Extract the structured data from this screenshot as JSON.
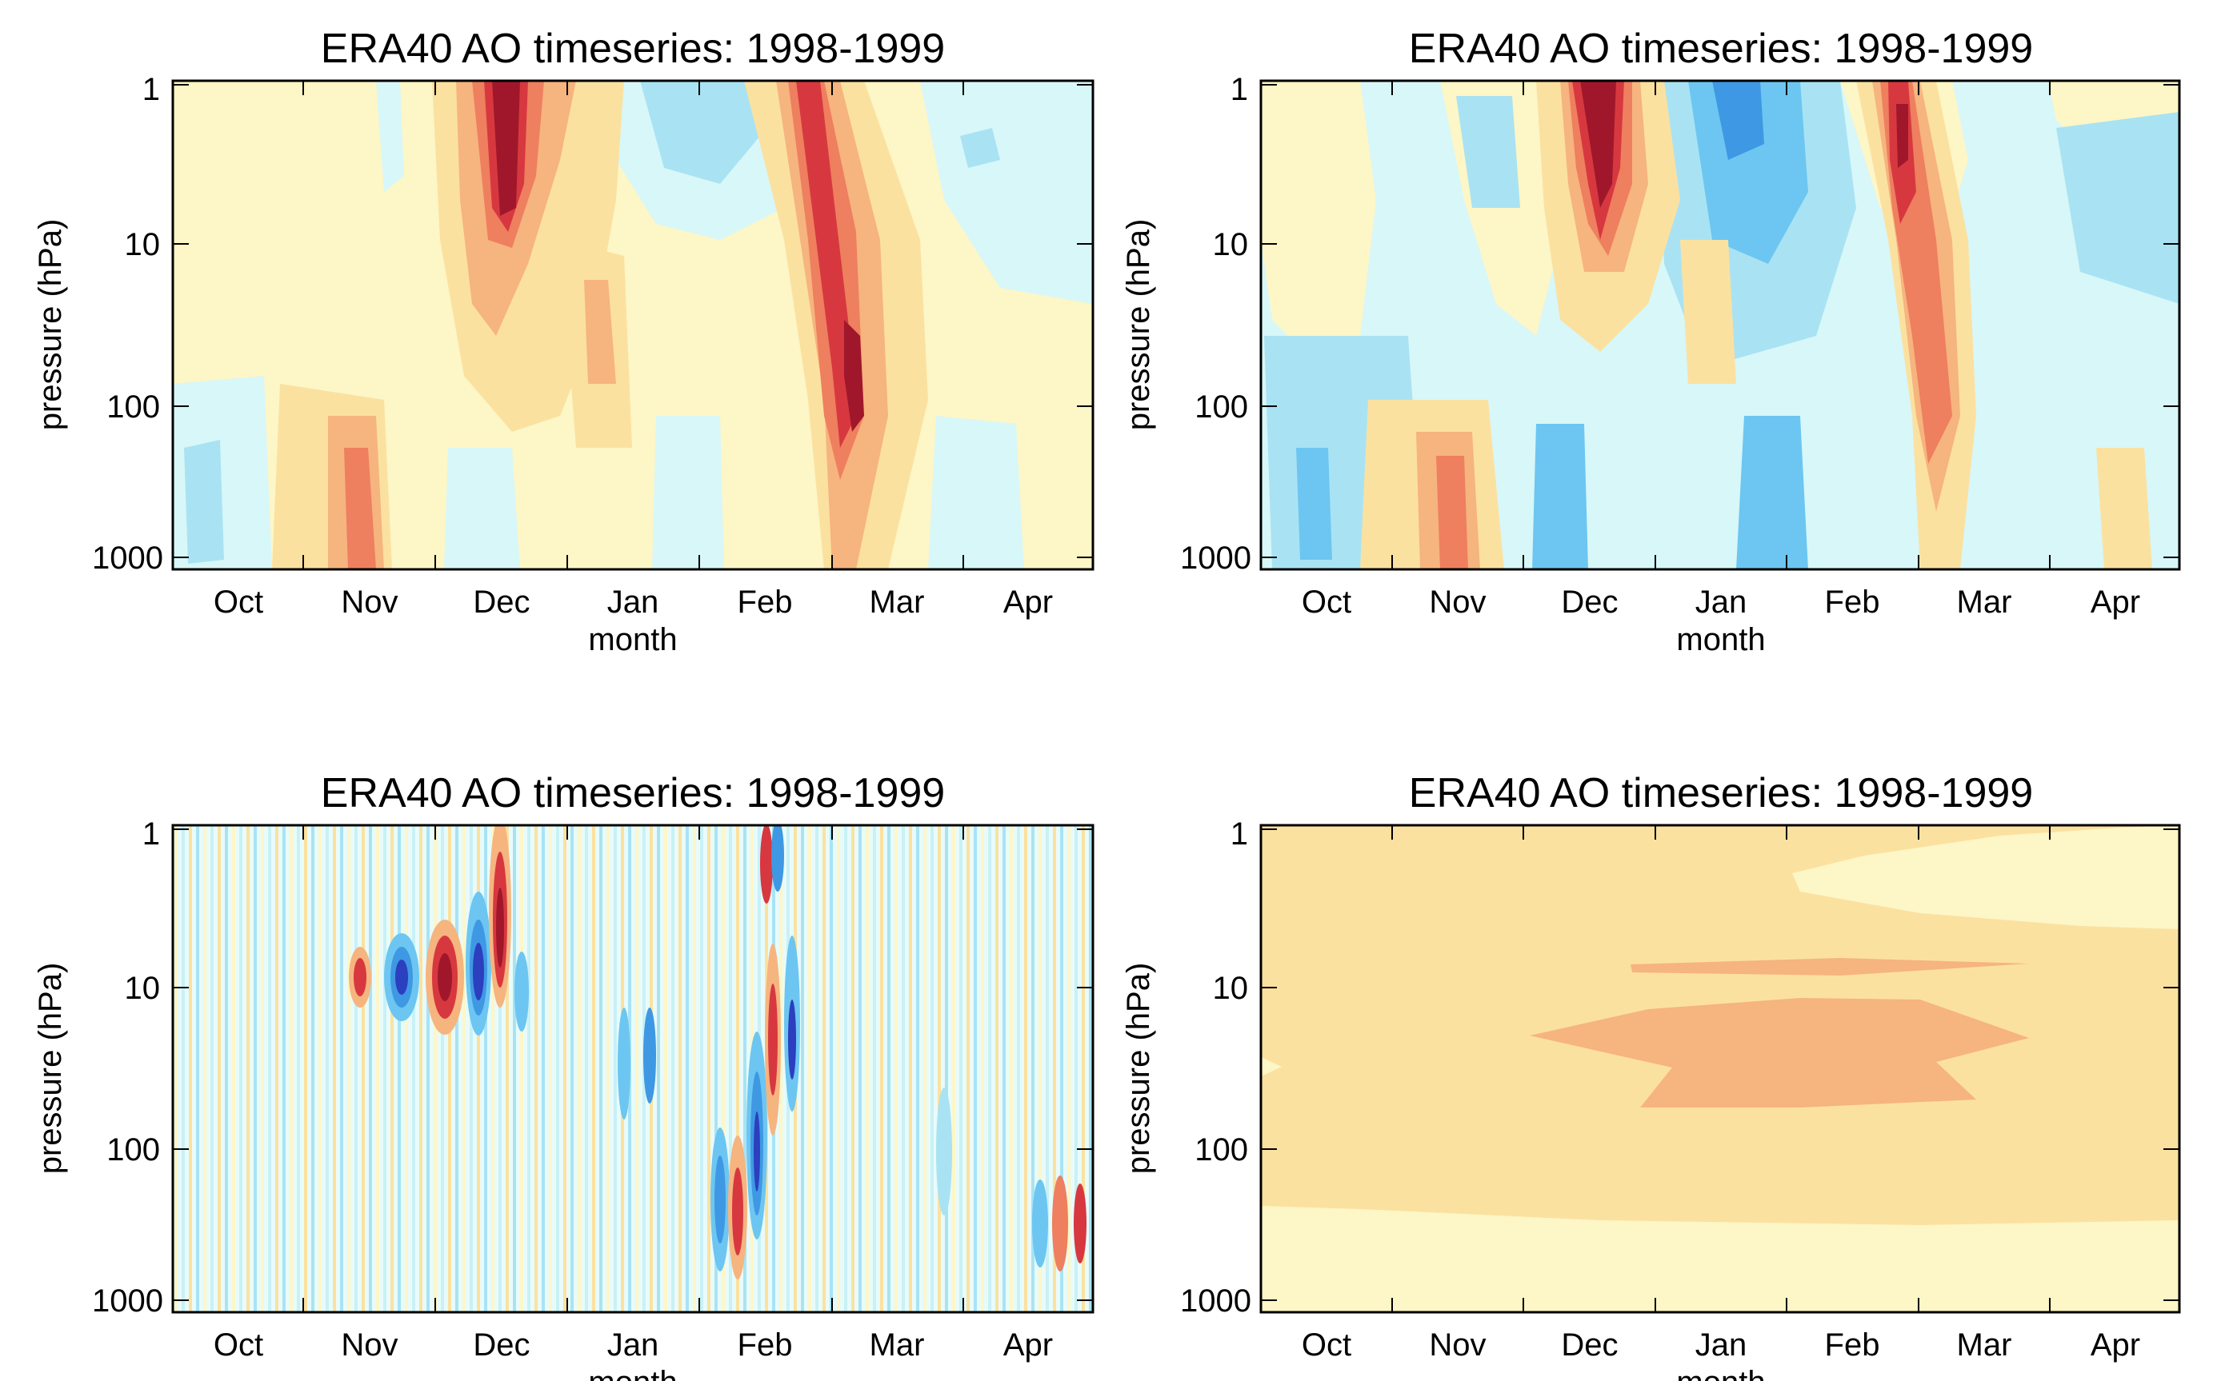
{
  "chart_data": [
    {
      "type": "heatmap",
      "title": "ERA40 AO timeseries: 1998-1999",
      "xlabel": "month",
      "ylabel": "pressure (hPa)",
      "xticks": [
        "Oct",
        "Nov",
        "Dec",
        "Jan",
        "Feb",
        "Mar",
        "Apr"
      ],
      "yticks": [
        "1",
        "10",
        "100",
        "1000"
      ],
      "ylim": [
        1000,
        1
      ],
      "yscale": "log",
      "palette": [
        "#2b3fbf",
        "#4a90e2",
        "#8fd0f0",
        "#c9f1f6",
        "#e8fbfb",
        "#fdf6c6",
        "#fbe1a0",
        "#f6b47f",
        "#ee7f5f",
        "#d7383f",
        "#a0172b"
      ],
      "features": [
        {
          "month": "Dec",
          "p_top": 1,
          "p_bottom": 20,
          "level": 5
        },
        {
          "month": "Feb",
          "p_top": 1,
          "p_bottom": 150,
          "level": 4
        },
        {
          "month": "Nov",
          "p_top": 200,
          "p_bottom": 1000,
          "level": 3
        },
        {
          "month": "Jan",
          "p_top": 1,
          "p_bottom": 8,
          "level": -2
        }
      ]
    },
    {
      "type": "heatmap",
      "title": "ERA40 AO timeseries: 1998-1999",
      "xlabel": "month",
      "ylabel": "pressure (hPa)",
      "xticks": [
        "Oct",
        "Nov",
        "Dec",
        "Jan",
        "Feb",
        "Mar",
        "Apr"
      ],
      "yticks": [
        "1",
        "10",
        "100",
        "1000"
      ],
      "ylim": [
        1000,
        1
      ],
      "yscale": "log",
      "features": [
        {
          "month": "Dec",
          "p_top": 1,
          "p_bottom": 30,
          "level": 5
        },
        {
          "month": "Feb",
          "p_top": 1,
          "p_bottom": 300,
          "level": 4
        },
        {
          "month": "Jan",
          "p_top": 1,
          "p_bottom": 20,
          "level": -3
        },
        {
          "month": "Nov",
          "p_top": 200,
          "p_bottom": 1000,
          "level": 3
        }
      ]
    },
    {
      "type": "heatmap",
      "title": "ERA40 AO timeseries: 1998-1999",
      "xlabel": "month",
      "ylabel": "pressure (hPa)",
      "xticks": [
        "Oct",
        "Nov",
        "Dec",
        "Jan",
        "Feb",
        "Mar",
        "Apr"
      ],
      "yticks": [
        "1",
        "10",
        "100",
        "1000"
      ],
      "ylim": [
        1000,
        1
      ],
      "yscale": "log",
      "features": [
        {
          "month": "Nov",
          "p_top": 6,
          "p_bottom": 20,
          "level": 5
        },
        {
          "month": "Dec",
          "p_top": 1,
          "p_bottom": 25,
          "level": -5
        },
        {
          "month": "Feb",
          "p_top": 100,
          "p_bottom": 1000,
          "level": -4
        }
      ]
    },
    {
      "type": "heatmap",
      "title": "ERA40 AO timeseries: 1998-1999",
      "xlabel": "month",
      "ylabel": "pressure (hPa)",
      "xticks": [
        "Oct",
        "Nov",
        "Dec",
        "Jan",
        "Feb",
        "Mar",
        "Apr"
      ],
      "yticks": [
        "1",
        "10",
        "100",
        "1000"
      ],
      "ylim": [
        1000,
        1
      ],
      "yscale": "log",
      "features": [
        {
          "month": "Dec-Mar",
          "p_top": 8,
          "p_bottom": 11,
          "level": 2
        },
        {
          "month": "Dec-Mar",
          "p_top": 15,
          "p_bottom": 50,
          "level": 2
        }
      ]
    }
  ]
}
